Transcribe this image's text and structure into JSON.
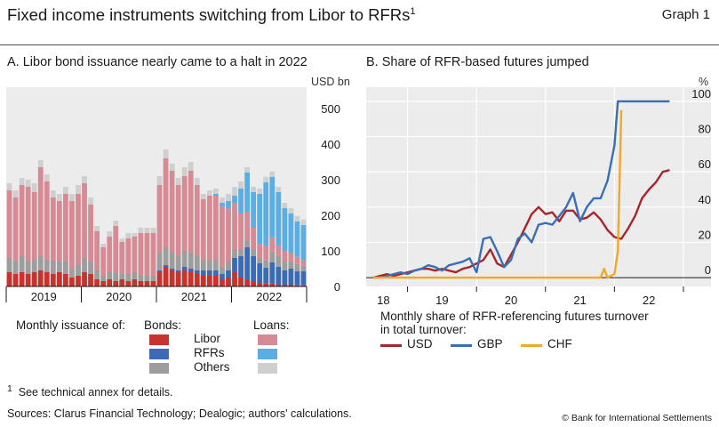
{
  "header": {
    "title": "Fixed income instruments switching from Libor to RFRs",
    "title_sup": "1",
    "graph_label": "Graph 1"
  },
  "chart_data": [
    {
      "panel": "A",
      "type": "bar",
      "stacked": true,
      "title": "A. Libor bond issuance nearly came to a halt in 2022",
      "unit": "USD bn",
      "ylim": [
        0,
        560
      ],
      "yticks": [
        0,
        100,
        200,
        300,
        400,
        500
      ],
      "y_axis_side": "right",
      "grid": false,
      "period_labels": [
        "2019",
        "2020",
        "2021",
        "2022"
      ],
      "categories": [
        "2019-01",
        "2019-02",
        "2019-03",
        "2019-04",
        "2019-05",
        "2019-06",
        "2019-07",
        "2019-08",
        "2019-09",
        "2019-10",
        "2019-11",
        "2019-12",
        "2020-01",
        "2020-02",
        "2020-03",
        "2020-04",
        "2020-05",
        "2020-06",
        "2020-07",
        "2020-08",
        "2020-09",
        "2020-10",
        "2020-11",
        "2020-12",
        "2021-01",
        "2021-02",
        "2021-03",
        "2021-04",
        "2021-05",
        "2021-06",
        "2021-07",
        "2021-08",
        "2021-09",
        "2021-10",
        "2021-11",
        "2021-12",
        "2022-01",
        "2022-02",
        "2022-03",
        "2022-04",
        "2022-05",
        "2022-06",
        "2022-07",
        "2022-08",
        "2022-09",
        "2022-10",
        "2022-11",
        "2022-12"
      ],
      "series": [
        {
          "name": "Libor",
          "group": "Bonds",
          "color": "#c8332e",
          "values": [
            40,
            35,
            40,
            35,
            40,
            45,
            40,
            35,
            40,
            35,
            25,
            30,
            40,
            35,
            20,
            15,
            20,
            15,
            20,
            15,
            20,
            15,
            15,
            15,
            40,
            55,
            45,
            40,
            45,
            40,
            35,
            30,
            30,
            30,
            20,
            25,
            40,
            25,
            20,
            15,
            10,
            8,
            8,
            5,
            5,
            5,
            3,
            3
          ]
        },
        {
          "name": "RFRs",
          "group": "Bonds",
          "color": "#3a6bb4",
          "values": [
            0,
            0,
            0,
            0,
            0,
            0,
            0,
            0,
            0,
            0,
            0,
            0,
            0,
            0,
            0,
            0,
            0,
            0,
            0,
            0,
            0,
            0,
            0,
            0,
            5,
            5,
            5,
            5,
            10,
            10,
            10,
            15,
            15,
            15,
            15,
            20,
            40,
            60,
            90,
            70,
            55,
            45,
            60,
            50,
            40,
            45,
            40,
            40
          ]
        },
        {
          "name": "Others",
          "group": "Bonds",
          "color": "#9d9d9d",
          "values": [
            40,
            35,
            45,
            35,
            35,
            40,
            35,
            35,
            30,
            35,
            25,
            30,
            40,
            35,
            25,
            15,
            20,
            25,
            15,
            20,
            20,
            15,
            15,
            15,
            50,
            50,
            45,
            40,
            45,
            45,
            40,
            30,
            30,
            30,
            20,
            25,
            25,
            20,
            20,
            20,
            15,
            20,
            30,
            30,
            25,
            20,
            20,
            15
          ]
        },
        {
          "name": "Libor",
          "group": "Loans",
          "color": "#d68a93",
          "values": [
            190,
            180,
            200,
            210,
            190,
            250,
            220,
            180,
            170,
            190,
            190,
            200,
            210,
            160,
            110,
            80,
            100,
            130,
            90,
            100,
            100,
            120,
            120,
            120,
            190,
            250,
            230,
            200,
            210,
            230,
            200,
            170,
            180,
            180,
            170,
            150,
            130,
            100,
            80,
            60,
            40,
            40,
            40,
            30,
            30,
            25,
            20,
            15
          ]
        },
        {
          "name": "RFRs",
          "group": "Loans",
          "color": "#5aaee3",
          "values": [
            0,
            0,
            0,
            0,
            0,
            0,
            0,
            0,
            0,
            0,
            0,
            0,
            0,
            0,
            0,
            0,
            0,
            0,
            0,
            0,
            0,
            0,
            0,
            0,
            0,
            0,
            0,
            0,
            0,
            0,
            0,
            0,
            0,
            5,
            10,
            20,
            20,
            70,
            110,
            100,
            140,
            180,
            170,
            150,
            120,
            110,
            100,
            100
          ]
        },
        {
          "name": "Others",
          "group": "Loans",
          "color": "#cfcfcf",
          "values": [
            20,
            20,
            20,
            20,
            25,
            20,
            20,
            20,
            20,
            20,
            20,
            25,
            20,
            20,
            15,
            10,
            15,
            15,
            10,
            15,
            10,
            15,
            15,
            15,
            25,
            25,
            20,
            20,
            25,
            25,
            20,
            15,
            15,
            15,
            15,
            20,
            25,
            20,
            15,
            15,
            15,
            15,
            15,
            15,
            15,
            15,
            15,
            15
          ]
        }
      ]
    },
    {
      "panel": "B",
      "type": "line",
      "title": "B. Share of RFR-based futures jumped",
      "unit": "%",
      "ylim": [
        -5,
        108
      ],
      "yticks": [
        0,
        20,
        40,
        60,
        80,
        100
      ],
      "y_axis_side": "right",
      "grid": true,
      "x_period_labels": [
        "18",
        "19",
        "20",
        "21",
        "22"
      ],
      "series": [
        {
          "name": "USD",
          "color": "#a8262b",
          "x": [
            2018.0,
            2018.1,
            2018.2,
            2018.3,
            2018.4,
            2018.5,
            2018.6,
            2018.7,
            2018.8,
            2018.9,
            2019.0,
            2019.1,
            2019.2,
            2019.3,
            2019.4,
            2019.5,
            2019.6,
            2019.7,
            2019.8,
            2019.9,
            2020.0,
            2020.1,
            2020.2,
            2020.3,
            2020.4,
            2020.5,
            2020.6,
            2020.7,
            2020.8,
            2020.9,
            2021.0,
            2021.1,
            2021.2,
            2021.3,
            2021.4,
            2021.5,
            2021.6,
            2021.7,
            2021.8,
            2021.9,
            2022.0,
            2022.1,
            2022.2,
            2022.3
          ],
          "y": [
            0,
            1,
            2,
            1,
            2,
            3,
            4,
            5,
            5,
            4,
            5,
            4,
            3,
            5,
            6,
            8,
            10,
            16,
            8,
            6,
            13,
            20,
            28,
            36,
            40,
            36,
            37,
            32,
            38,
            38,
            33,
            34,
            37,
            33,
            27,
            23,
            22,
            28,
            35,
            45,
            50,
            54,
            60,
            61
          ]
        },
        {
          "name": "GBP",
          "color": "#3a6eb5",
          "x": [
            2018.0,
            2018.1,
            2018.2,
            2018.3,
            2018.4,
            2018.5,
            2018.6,
            2018.7,
            2018.8,
            2018.9,
            2019.0,
            2019.1,
            2019.2,
            2019.3,
            2019.4,
            2019.5,
            2019.6,
            2019.7,
            2019.8,
            2019.9,
            2020.0,
            2020.1,
            2020.2,
            2020.3,
            2020.4,
            2020.5,
            2020.6,
            2020.7,
            2020.8,
            2020.9,
            2021.0,
            2021.1,
            2021.2,
            2021.3,
            2021.4,
            2021.5,
            2021.55,
            2021.65,
            2021.8,
            2021.9,
            2022.0,
            2022.1,
            2022.2,
            2022.3
          ],
          "y": [
            0,
            0,
            1,
            2,
            3,
            2,
            4,
            5,
            7,
            6,
            4,
            7,
            8,
            9,
            11,
            3,
            22,
            23,
            15,
            6,
            10,
            22,
            25,
            20,
            30,
            31,
            30,
            35,
            40,
            48,
            32,
            40,
            45,
            45,
            55,
            75,
            100,
            100,
            100,
            100,
            100,
            100,
            100,
            100
          ]
        },
        {
          "name": "CHF",
          "color": "#f0a82a",
          "x": [
            2018.0,
            2018.5,
            2019.0,
            2019.5,
            2020.0,
            2020.5,
            2021.0,
            2021.3,
            2021.35,
            2021.4,
            2021.5,
            2021.55,
            2021.6
          ],
          "y": [
            0,
            0,
            0,
            0,
            0,
            0,
            0,
            0,
            5,
            0,
            2,
            15,
            95
          ]
        }
      ]
    }
  ],
  "legend_a": {
    "caption": "Monthly issuance of:",
    "bonds_title": "Bonds:",
    "loans_title": "Loans:",
    "rows": [
      "Libor",
      "RFRs",
      "Others"
    ]
  },
  "legend_b": {
    "caption_line1": "Monthly share of RFR-referencing futures turnover",
    "caption_line2": "in total turnover:"
  },
  "footer": {
    "footnote": "See technical annex for details.",
    "footnote_mark": "1",
    "sources": "Sources: Clarus Financial Technology; Dealogic; authors' calculations.",
    "copyright": "© Bank for International Settlements"
  }
}
